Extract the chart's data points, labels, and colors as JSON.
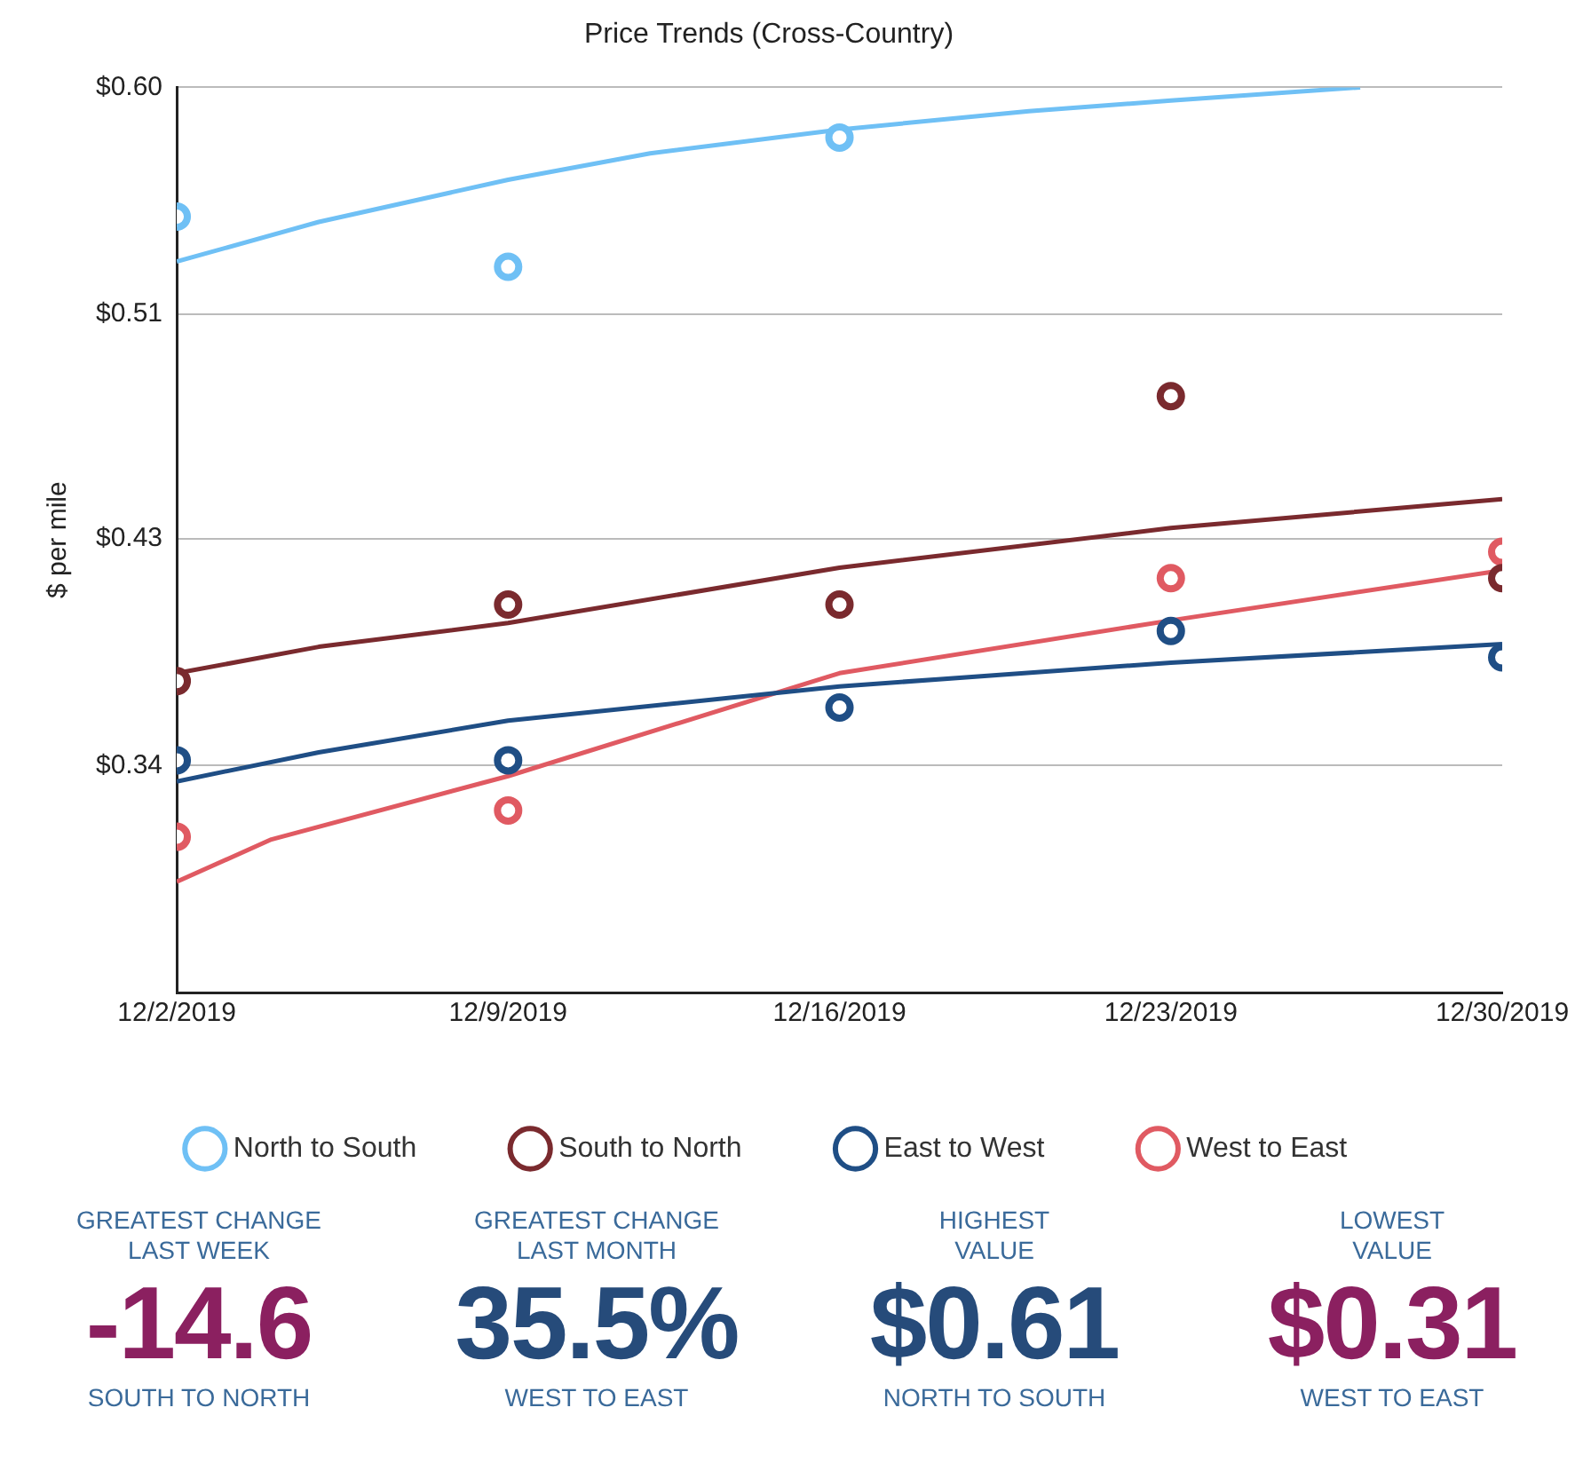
{
  "chart_data": [
    {
      "type": "scatter",
      "title": "Price Trends (Cross-Country)",
      "ylabel": "$ per mile",
      "x": [
        "2019-12-02",
        "2019-12-09",
        "2019-12-16",
        "2019-12-23",
        "2019-12-30"
      ],
      "xlim": [
        "2019-12-02",
        "2019-12-30"
      ],
      "xticks": [
        {
          "value": "2019-12-02",
          "label": "12/2/2019"
        },
        {
          "value": "2019-12-09",
          "label": "12/9/2019"
        },
        {
          "value": "2019-12-16",
          "label": "12/16/2019"
        },
        {
          "value": "2019-12-23",
          "label": "12/23/2019"
        },
        {
          "value": "2019-12-30",
          "label": "12/30/2019"
        }
      ],
      "ylim": [
        0.257,
        0.6
      ],
      "yticks": [
        {
          "value": 0.257,
          "label": null
        },
        {
          "value": 0.343,
          "label": "$0.34"
        },
        {
          "value": 0.429,
          "label": "$0.43"
        },
        {
          "value": 0.514,
          "label": "$0.51"
        },
        {
          "value": 0.6,
          "label": "$0.60"
        }
      ],
      "grid": "y",
      "legend": "bottom",
      "marker": "circle",
      "series": [
        {
          "name": "North to South",
          "color": "#6fc0f5",
          "values": [
            0.551,
            0.532,
            0.581,
            null,
            null
          ]
        },
        {
          "name": "South to North",
          "color": "#7a2a2e",
          "values": [
            0.375,
            0.404,
            0.404,
            0.483,
            0.414
          ]
        },
        {
          "name": "East to West",
          "color": "#1f4e85",
          "values": [
            0.345,
            0.345,
            0.365,
            0.394,
            0.384
          ]
        },
        {
          "name": "West to East",
          "color": "#e05a62",
          "values": [
            0.316,
            0.326,
            null,
            0.414,
            0.424
          ]
        },
        {
          "type": "line",
          "marker": "none",
          "color": "#6fc0f5",
          "x": [
            "2019-12-02",
            "2019-12-05",
            "2019-12-09",
            "2019-12-12",
            "2019-12-16",
            "2019-12-20",
            "2019-12-23",
            "2019-12-27"
          ],
          "values": [
            0.534,
            0.549,
            0.565,
            0.575,
            0.584,
            0.591,
            0.595,
            0.6
          ]
        },
        {
          "type": "line",
          "marker": "none",
          "color": "#7a2a2e",
          "x": [
            "2019-12-02",
            "2019-12-05",
            "2019-12-09",
            "2019-12-16",
            "2019-12-23",
            "2019-12-30"
          ],
          "values": [
            0.378,
            0.388,
            0.397,
            0.418,
            0.433,
            0.444
          ]
        },
        {
          "type": "line",
          "marker": "none",
          "color": "#1f4e85",
          "x": [
            "2019-12-02",
            "2019-12-05",
            "2019-12-09",
            "2019-12-16",
            "2019-12-23",
            "2019-12-30"
          ],
          "values": [
            0.337,
            0.348,
            0.36,
            0.373,
            0.382,
            0.389
          ]
        },
        {
          "type": "line",
          "marker": "none",
          "color": "#e05a62",
          "x": [
            "2019-12-02",
            "2019-12-04",
            "2019-12-09",
            "2019-12-16",
            "2019-12-23",
            "2019-12-30"
          ],
          "values": [
            0.299,
            0.315,
            0.339,
            0.378,
            0.398,
            0.417
          ]
        }
      ]
    },
    {
      "type": "other",
      "annotations": [
        "GREATEST CHANGE\nLAST WEEK",
        "-14.6",
        "SOUTH TO NORTH",
        "GREATEST CHANGE\nLAST MONTH",
        "35.5%",
        "WEST TO EAST",
        "HIGHEST\nVALUE",
        "$0.61",
        "NORTH TO SOUTH",
        "LOWEST\nVALUE",
        "$0.31",
        "WEST TO EAST"
      ]
    }
  ]
}
